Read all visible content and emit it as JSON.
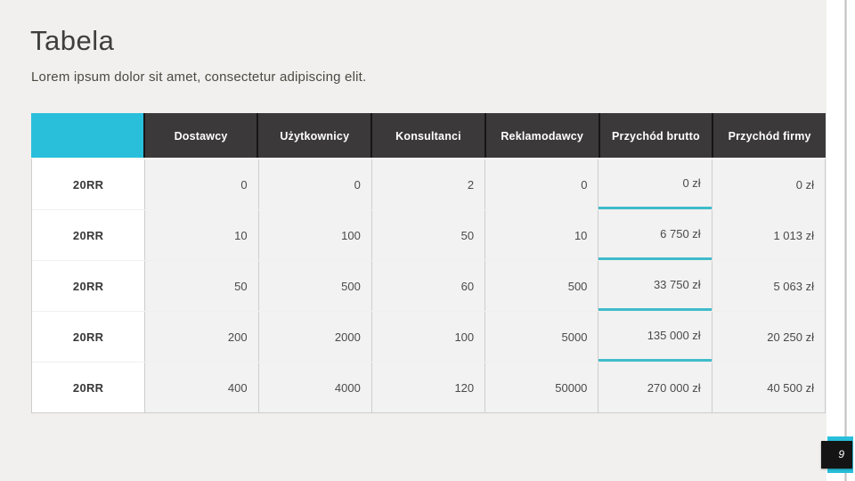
{
  "slide": {
    "title": "Tabela",
    "subtitle": "Lorem ipsum dolor sit amet, consectetur adipiscing elit.",
    "page_number": "9"
  },
  "table": {
    "corner_label": "",
    "columns": [
      "Dostawcy",
      "Użytkownicy",
      "Konsultanci",
      "Reklamodawcy",
      "Przychód brutto",
      "Przychód firmy"
    ],
    "highlight_column": "Przychód brutto",
    "rows": [
      {
        "label": "20RR",
        "values": [
          "0",
          "0",
          "2",
          "0",
          "0 zł",
          "0 zł"
        ]
      },
      {
        "label": "20RR",
        "values": [
          "10",
          "100",
          "50",
          "10",
          "6 750 zł",
          "1 013 zł"
        ]
      },
      {
        "label": "20RR",
        "values": [
          "50",
          "500",
          "60",
          "500",
          "33 750 zł",
          "5 063 zł"
        ]
      },
      {
        "label": "20RR",
        "values": [
          "200",
          "2000",
          "100",
          "5000",
          "135 000 zł",
          "20 250 zł"
        ]
      },
      {
        "label": "20RR",
        "values": [
          "400",
          "4000",
          "120",
          "50000",
          "270 000 zł",
          "40 500 zł"
        ]
      }
    ]
  },
  "colors": {
    "accent_cyan": "#29BFDB",
    "header_dark": "#3B3939",
    "underline_teal": "#3FBCCB",
    "cell_bg": "#F2F2F2",
    "slide_bg": "#F1F0EE"
  }
}
